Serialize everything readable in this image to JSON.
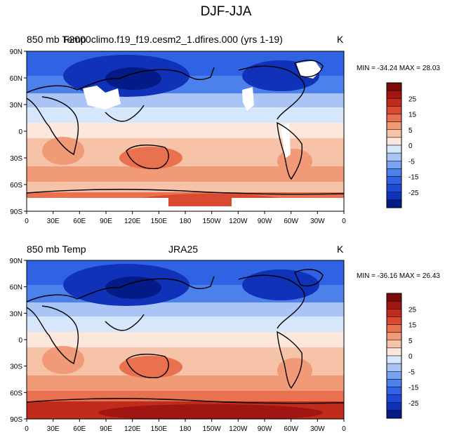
{
  "figure": {
    "title": "DJF-JJA"
  },
  "colors": {
    "levels_cool": [
      "#041a86",
      "#1032b8",
      "#1c49d6",
      "#2f63e4",
      "#4c80ea",
      "#7aa2f0",
      "#a9c4f5",
      "#d6e6fb"
    ],
    "levels_warm": [
      "#fbe7dc",
      "#f6c3a8",
      "#f19a77",
      "#e9714f",
      "#d94a30",
      "#c02b1c",
      "#9e1511",
      "#7a0b08"
    ],
    "missing": "#ffffff",
    "coast": "#000000"
  },
  "chart_data": [
    {
      "type": "heatmap",
      "left_label": "850 mb Temp",
      "center_label": "F2000climo.f19_f19.cesm2_1.dfires.000 (yrs 1-19)",
      "right_label": "K",
      "stats": "MIN = -34.24 MAX =  28.03",
      "min": -34.24,
      "max": 28.03,
      "x_ticks": [
        "0",
        "30E",
        "60E",
        "90E",
        "120E",
        "150E",
        "180",
        "150W",
        "120W",
        "90W",
        "60W",
        "30W",
        "0"
      ],
      "y_ticks": [
        "90N",
        "60N",
        "30N",
        "0",
        "30S",
        "60S",
        "90S"
      ],
      "colorbar_ticks": [
        "25",
        "15",
        "5",
        "-5",
        "-15",
        "-25"
      ],
      "colorbar_extra_tick": "0",
      "has_missing_regions": true
    },
    {
      "type": "heatmap",
      "left_label": "850 mb Temp",
      "center_label": "JRA25",
      "right_label": "K",
      "stats": "MIN = -36.16 MAX =  26.43",
      "min": -36.16,
      "max": 26.43,
      "x_ticks": [
        "0",
        "30E",
        "60E",
        "90E",
        "120E",
        "150E",
        "180",
        "150W",
        "120W",
        "90W",
        "60W",
        "30W",
        "0"
      ],
      "y_ticks": [
        "90N",
        "60N",
        "30N",
        "0",
        "30S",
        "60S",
        "90S"
      ],
      "colorbar_ticks": [
        "25",
        "15",
        "5",
        "-5",
        "-15",
        "-25"
      ],
      "colorbar_extra_tick": "0",
      "has_missing_regions": false
    }
  ]
}
